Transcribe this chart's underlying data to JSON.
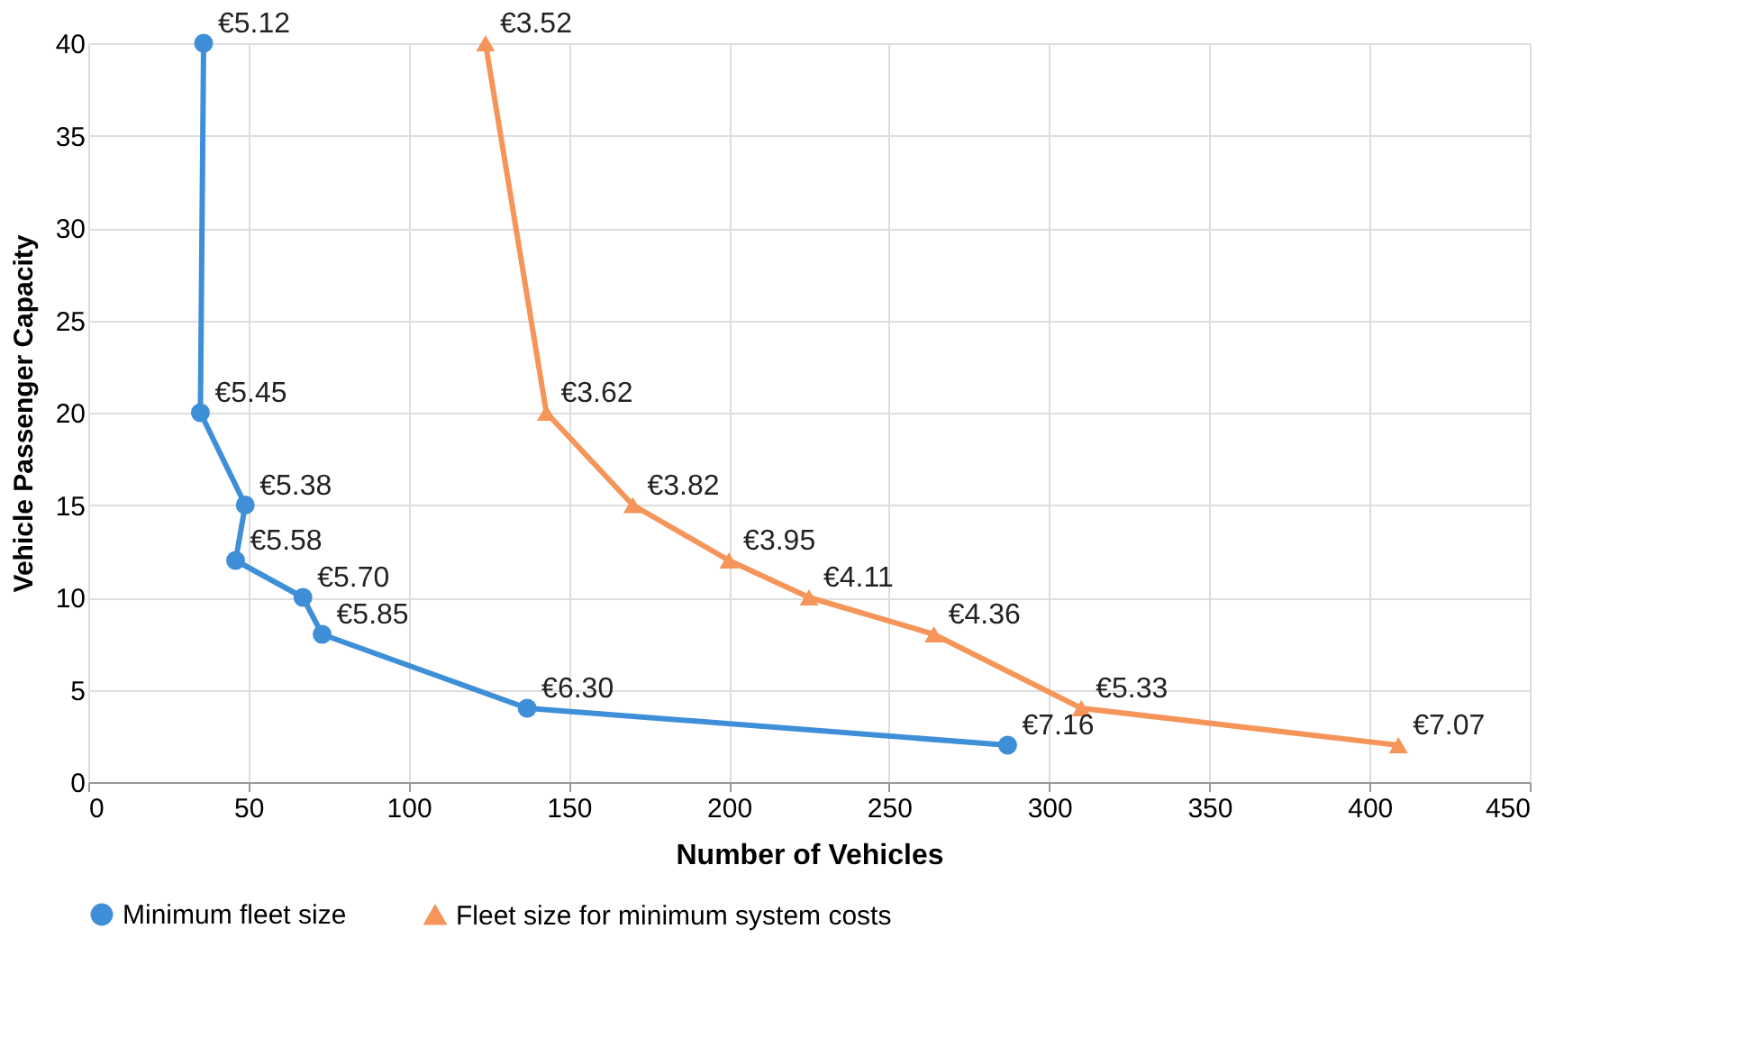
{
  "chart_data": {
    "type": "line",
    "xlabel": "Number of Vehicles",
    "ylabel": "Vehicle Passenger Capacity",
    "xlim": [
      0,
      450
    ],
    "xticks": [
      0,
      50,
      100,
      150,
      200,
      250,
      300,
      350,
      400,
      450
    ],
    "ylim": [
      0,
      40
    ],
    "yticks": [
      0,
      5,
      10,
      15,
      20,
      25,
      30,
      35,
      40
    ],
    "grid": true,
    "legend": "bottom",
    "line_style": "solid",
    "series": [
      {
        "name": "Minimum fleet size",
        "color": "#3f8fd8",
        "marker": "circle",
        "x": [
          36,
          35,
          49,
          46,
          67,
          73,
          137,
          287
        ],
        "values": [
          40,
          20,
          15,
          12,
          10,
          8,
          4,
          2
        ]
      },
      {
        "name": "Fleet size for minimum system costs",
        "color": "#f5955a",
        "marker": "triangle",
        "x": [
          124,
          143,
          170,
          200,
          225,
          264,
          310,
          409
        ],
        "values": [
          40,
          20,
          15,
          12,
          10,
          8,
          4,
          2
        ]
      }
    ],
    "annotations": [
      {
        "text": "€5.12",
        "x": 36,
        "y": 40
      },
      {
        "text": "€5.45",
        "x": 35,
        "y": 20
      },
      {
        "text": "€5.38",
        "x": 49,
        "y": 15
      },
      {
        "text": "€5.58",
        "x": 46,
        "y": 12
      },
      {
        "text": "€5.70",
        "x": 67,
        "y": 10
      },
      {
        "text": "€5.85",
        "x": 73,
        "y": 8
      },
      {
        "text": "€6.30",
        "x": 137,
        "y": 4
      },
      {
        "text": "€7.16",
        "x": 287,
        "y": 2
      },
      {
        "text": "€3.52",
        "x": 124,
        "y": 40
      },
      {
        "text": "€3.62",
        "x": 143,
        "y": 20
      },
      {
        "text": "€3.82",
        "x": 170,
        "y": 15
      },
      {
        "text": "€3.95",
        "x": 200,
        "y": 12
      },
      {
        "text": "€4.11",
        "x": 225,
        "y": 10
      },
      {
        "text": "€4.36",
        "x": 264,
        "y": 8
      },
      {
        "text": "€5.33",
        "x": 310,
        "y": 4
      },
      {
        "text": "€7.07",
        "x": 409,
        "y": 2
      }
    ]
  }
}
